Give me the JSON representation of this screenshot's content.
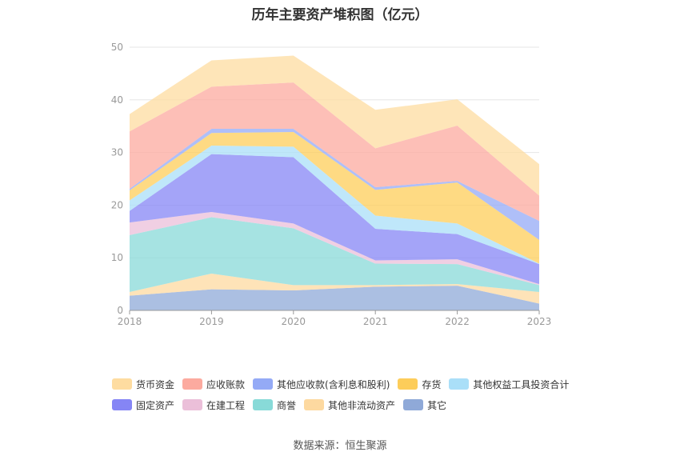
{
  "chart_data": {
    "type": "area",
    "stacked": true,
    "title": "历年主要资产堆积图（亿元）",
    "categories": [
      "2018",
      "2019",
      "2020",
      "2021",
      "2022",
      "2023"
    ],
    "ylim": [
      0,
      50
    ],
    "yticks": [
      0,
      10,
      20,
      30,
      40,
      50
    ],
    "grid": true,
    "legend_position": "bottom",
    "series": [
      {
        "name": "其它",
        "color": "#8fa9d8",
        "values": [
          2.8,
          4.0,
          3.8,
          4.5,
          4.7,
          1.3
        ]
      },
      {
        "name": "其他非流动资产",
        "color": "#fdd9a0",
        "values": [
          0.7,
          3.0,
          1.0,
          0.3,
          0.3,
          2.2
        ]
      },
      {
        "name": "商誉",
        "color": "#88dad8",
        "values": [
          10.8,
          10.7,
          10.8,
          4.1,
          3.8,
          1.3
        ]
      },
      {
        "name": "在建工程",
        "color": "#ebbfd9",
        "values": [
          2.4,
          1.0,
          0.9,
          0.6,
          0.9,
          0.2
        ]
      },
      {
        "name": "固定资产",
        "color": "#8585f5",
        "values": [
          2.2,
          11.0,
          12.6,
          6.0,
          4.8,
          3.8
        ]
      },
      {
        "name": "其他权益工具投资合计",
        "color": "#aadff8",
        "values": [
          2.0,
          1.6,
          2.0,
          2.5,
          2.0,
          0.1
        ]
      },
      {
        "name": "存货",
        "color": "#fdcd5a",
        "values": [
          1.9,
          2.4,
          2.8,
          4.9,
          7.8,
          4.5
        ]
      },
      {
        "name": "其他应收款(含利息和股利)",
        "color": "#94aaf6",
        "values": [
          0.3,
          0.8,
          0.6,
          0.5,
          0.3,
          3.6
        ]
      },
      {
        "name": "应收账款",
        "color": "#fcaa9f",
        "values": [
          10.9,
          8.0,
          8.8,
          7.4,
          10.5,
          4.8
        ]
      },
      {
        "name": "货币资金",
        "color": "#fedca0",
        "values": [
          3.3,
          5.0,
          5.1,
          7.3,
          5.0,
          6.0
        ]
      }
    ],
    "legend_rows": [
      [
        "货币资金",
        "应收账款",
        "其他应收款(含利息和股利)",
        "存货",
        "其他权益工具投资合计"
      ],
      [
        "固定资产",
        "在建工程",
        "商誉",
        "其他非流动资产",
        "其它"
      ]
    ]
  },
  "source_text": "数据来源：恒生聚源"
}
